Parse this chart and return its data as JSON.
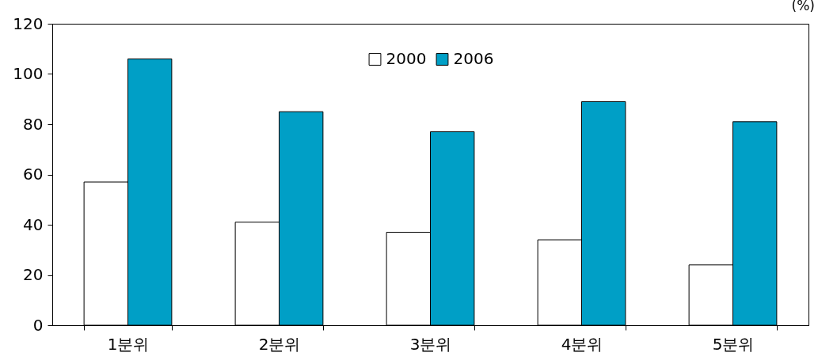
{
  "chart_data": {
    "type": "bar",
    "categories": [
      "1분위",
      "2분위",
      "3분위",
      "4분위",
      "5분위"
    ],
    "series": [
      {
        "name": "2000",
        "color": "#ffffff",
        "values": [
          57,
          41,
          37,
          34,
          24
        ]
      },
      {
        "name": "2006",
        "color": "#009fc6",
        "values": [
          106,
          85,
          77,
          89,
          81
        ]
      }
    ],
    "ylim": [
      0,
      120
    ],
    "yticks": [
      0,
      20,
      40,
      60,
      80,
      100,
      120
    ],
    "legend": "top",
    "annotations": [
      "(%)"
    ]
  }
}
